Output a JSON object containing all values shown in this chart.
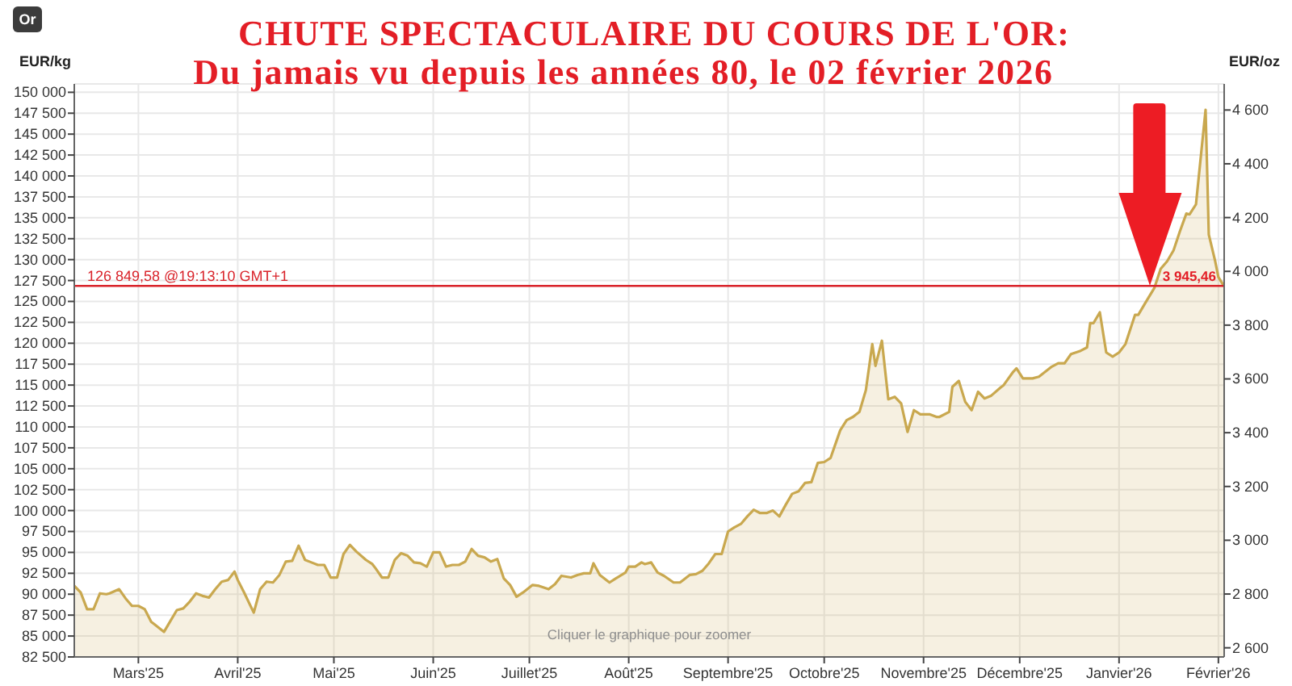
{
  "chart_data": {
    "type": "area",
    "title": "CHUTE SPECTACULAIRE DU COURS DE L'OR:",
    "subtitle": "Du jamais vu depuis les années 80, le 02 février 2026",
    "ylabel": "EUR/kg",
    "y2label": "EUR/oz",
    "annotations": [
      "Or",
      "Cliquer le graphique pour zoomer",
      {
        "text": "3 945,46",
        "x": "2026-02-02T19:13",
        "y": 126849.58
      }
    ],
    "x": [
      "2025-02-09",
      "2025-02-11",
      "2025-02-13",
      "2025-02-15",
      "2025-02-17",
      "2025-02-19",
      "2025-02-20",
      "2025-02-23",
      "2025-02-25",
      "2025-02-27",
      "2025-03-01",
      "2025-03-03",
      "2025-03-05",
      "2025-03-06",
      "2025-03-09",
      "2025-03-11",
      "2025-03-13",
      "2025-03-15",
      "2025-03-17",
      "2025-03-19",
      "2025-03-21",
      "2025-03-23",
      "2025-03-25",
      "2025-03-27",
      "2025-03-29",
      "2025-03-31",
      "2025-04-01",
      "2025-04-03",
      "2025-04-06",
      "2025-04-08",
      "2025-04-10",
      "2025-04-12",
      "2025-04-14",
      "2025-04-16",
      "2025-04-18",
      "2025-04-20",
      "2025-04-22",
      "2025-04-24",
      "2025-04-26",
      "2025-04-28",
      "2025-04-30",
      "2025-05-02",
      "2025-05-04",
      "2025-05-06",
      "2025-05-08",
      "2025-05-11",
      "2025-05-13",
      "2025-05-14",
      "2025-05-16",
      "2025-05-18",
      "2025-05-20",
      "2025-05-22",
      "2025-05-24",
      "2025-05-26",
      "2025-05-28",
      "2025-05-30",
      "2025-06-01",
      "2025-06-03",
      "2025-06-05",
      "2025-06-07",
      "2025-06-09",
      "2025-06-11",
      "2025-06-13",
      "2025-06-15",
      "2025-06-17",
      "2025-06-19",
      "2025-06-21",
      "2025-06-23",
      "2025-06-25",
      "2025-06-27",
      "2025-06-29",
      "2025-07-02",
      "2025-07-04",
      "2025-07-07",
      "2025-07-09",
      "2025-07-11",
      "2025-07-14",
      "2025-07-16",
      "2025-07-18",
      "2025-07-20",
      "2025-07-21",
      "2025-07-23",
      "2025-07-26",
      "2025-07-28",
      "2025-07-31",
      "2025-08-01",
      "2025-08-03",
      "2025-08-05",
      "2025-08-06",
      "2025-08-08",
      "2025-08-10",
      "2025-08-12",
      "2025-08-15",
      "2025-08-17",
      "2025-08-18",
      "2025-08-20",
      "2025-08-22",
      "2025-08-24",
      "2025-08-26",
      "2025-08-28",
      "2025-08-30",
      "2025-09-01",
      "2025-09-03",
      "2025-09-05",
      "2025-09-07",
      "2025-09-09",
      "2025-09-11",
      "2025-09-13",
      "2025-09-15",
      "2025-09-17",
      "2025-09-19",
      "2025-09-21",
      "2025-09-23",
      "2025-09-25",
      "2025-09-27",
      "2025-09-29",
      "2025-10-01",
      "2025-10-03",
      "2025-10-06",
      "2025-10-08",
      "2025-10-10",
      "2025-10-12",
      "2025-10-14",
      "2025-10-16",
      "2025-10-17",
      "2025-10-19",
      "2025-10-21",
      "2025-10-23",
      "2025-10-25",
      "2025-10-27",
      "2025-10-29",
      "2025-10-31",
      "2025-11-03",
      "2025-11-05",
      "2025-11-06",
      "2025-11-09",
      "2025-11-10",
      "2025-11-12",
      "2025-11-14",
      "2025-11-16",
      "2025-11-18",
      "2025-11-20",
      "2025-11-22",
      "2025-11-25",
      "2025-11-26",
      "2025-11-29",
      "2025-11-30",
      "2025-12-02",
      "2025-12-05",
      "2025-12-07",
      "2025-12-09",
      "2025-12-11",
      "2025-12-13",
      "2025-12-15",
      "2025-12-17",
      "2025-12-20",
      "2025-12-22",
      "2025-12-23",
      "2025-12-24",
      "2025-12-26",
      "2025-12-28",
      "2025-12-30",
      "2026-01-01",
      "2026-01-03",
      "2026-01-06",
      "2026-01-07",
      "2026-01-09",
      "2026-01-12",
      "2026-01-14",
      "2026-01-16",
      "2026-01-18",
      "2026-01-20",
      "2026-01-22",
      "2026-01-23",
      "2026-01-25",
      "2026-01-28",
      "2026-01-29",
      "2026-01-31",
      "2026-02-01",
      "2026-02-02T19:13"
    ],
    "series": [
      {
        "color": "#c9a84f",
        "values": [
          91000,
          90200,
          88200,
          88200,
          90100,
          90000,
          90100,
          90600,
          89500,
          88600,
          88600,
          88200,
          86700,
          86400,
          85500,
          86800,
          88100,
          88300,
          89100,
          90100,
          89800,
          89600,
          90600,
          91500,
          91700,
          92700,
          91700,
          90200,
          87800,
          90600,
          91500,
          91400,
          92300,
          93900,
          94000,
          95800,
          94100,
          93800,
          93500,
          93500,
          92000,
          92000,
          94800,
          95900,
          95100,
          94100,
          93600,
          93100,
          92000,
          92000,
          94100,
          94900,
          94600,
          93800,
          93700,
          93300,
          95000,
          95000,
          93300,
          93500,
          93500,
          93900,
          95400,
          94600,
          94400,
          93900,
          94200,
          91900,
          91100,
          89700,
          90200,
          91100,
          91000,
          90600,
          91200,
          92200,
          92000,
          92300,
          92500,
          92500,
          93700,
          92300,
          91400,
          91900,
          92600,
          93300,
          93300,
          93800,
          93600,
          93800,
          92600,
          92200,
          91400,
          91400,
          91700,
          92300,
          92400,
          92800,
          93700,
          94800,
          94800,
          97500,
          98000,
          98400,
          99300,
          100100,
          99700,
          99700,
          100000,
          99300,
          100700,
          102000,
          102300,
          103300,
          103400,
          105700,
          105800,
          106300,
          109600,
          110800,
          111200,
          111800,
          114400,
          119900,
          117300,
          120300,
          113300,
          113600,
          112800,
          109400,
          112000,
          111500,
          111500,
          111200,
          111200,
          111800,
          114800,
          115500,
          113000,
          112000,
          114200,
          113400,
          113700,
          114700,
          115000,
          116600,
          117000,
          115800,
          115800,
          116000,
          116600,
          117200,
          117600,
          117600,
          118700,
          119100,
          119500,
          122400,
          122400,
          123700,
          118900,
          118400,
          118900,
          119900,
          123400,
          123400,
          124700,
          126600,
          128900,
          129800,
          131100,
          133400,
          135500,
          135400,
          136600,
          147900,
          133000,
          129800,
          127900,
          126800
        ]
      }
    ],
    "xlim": [
      "2025-02-09",
      "2026-02-02T19:13"
    ],
    "xticks": [
      {
        "value": "2025-03-01",
        "label": "Mars'25"
      },
      {
        "value": "2025-04-01",
        "label": "Avril'25"
      },
      {
        "value": "2025-05-01",
        "label": "Mai'25"
      },
      {
        "value": "2025-06-01",
        "label": "Juin'25"
      },
      {
        "value": "2025-07-01",
        "label": "Juillet'25"
      },
      {
        "value": "2025-08-01",
        "label": "Août'25"
      },
      {
        "value": "2025-09-01",
        "label": "Septembre'25"
      },
      {
        "value": "2025-10-01",
        "label": "Octobre'25"
      },
      {
        "value": "2025-11-01",
        "label": "Novembre'25"
      },
      {
        "value": "2025-12-01",
        "label": "Décembre'25"
      },
      {
        "value": "2026-01-01",
        "label": "Janvier'26"
      },
      {
        "value": "2026-02-01",
        "label": "Février'26"
      }
    ],
    "ylim": [
      82500,
      151000
    ],
    "yticks": [
      {
        "value": 82500,
        "label": "82 500"
      },
      {
        "value": 85000,
        "label": "85 000"
      },
      {
        "value": 87500,
        "label": "87 500"
      },
      {
        "value": 90000,
        "label": "90 000"
      },
      {
        "value": 92500,
        "label": "92 500"
      },
      {
        "value": 95000,
        "label": "95 000"
      },
      {
        "value": 97500,
        "label": "97 500"
      },
      {
        "value": 100000,
        "label": "100 000"
      },
      {
        "value": 102500,
        "label": "102 500"
      },
      {
        "value": 105000,
        "label": "105 000"
      },
      {
        "value": 107500,
        "label": "107 500"
      },
      {
        "value": 110000,
        "label": "110 000"
      },
      {
        "value": 112500,
        "label": "112 500"
      },
      {
        "value": 115000,
        "label": "115 000"
      },
      {
        "value": 117500,
        "label": "117 500"
      },
      {
        "value": 120000,
        "label": "120 000"
      },
      {
        "value": 122500,
        "label": "122 500"
      },
      {
        "value": 125000,
        "label": "125 000"
      },
      {
        "value": 127500,
        "label": "127 500"
      },
      {
        "value": 130000,
        "label": "130 000"
      },
      {
        "value": 132500,
        "label": "132 500"
      },
      {
        "value": 135000,
        "label": "135 000"
      },
      {
        "value": 137500,
        "label": "137 500"
      },
      {
        "value": 140000,
        "label": "140 000"
      },
      {
        "value": 142500,
        "label": "142 500"
      },
      {
        "value": 145000,
        "label": "145 000"
      },
      {
        "value": 147500,
        "label": "147 500"
      },
      {
        "value": 150000,
        "label": "150 000"
      }
    ],
    "y2lim": [
      2566,
      4697
    ],
    "y2ticks": [
      {
        "value": 2600,
        "label": "2 600"
      },
      {
        "value": 2800,
        "label": "2 800"
      },
      {
        "value": 3000,
        "label": "3 000"
      },
      {
        "value": 3200,
        "label": "3 200"
      },
      {
        "value": 3400,
        "label": "3 400"
      },
      {
        "value": 3600,
        "label": "3 600"
      },
      {
        "value": 3800,
        "label": "3 800"
      },
      {
        "value": 4000,
        "label": "4 000"
      },
      {
        "value": 4200,
        "label": "4 200"
      },
      {
        "value": 4400,
        "label": "4 400"
      },
      {
        "value": 4600,
        "label": "4 600"
      }
    ],
    "ref_lines": [
      {
        "axis": "y",
        "value": 126849.58,
        "label": "126 849,58 @19:13:10 GMT+1",
        "color": "#d9232a"
      }
    ],
    "grid": true
  }
}
